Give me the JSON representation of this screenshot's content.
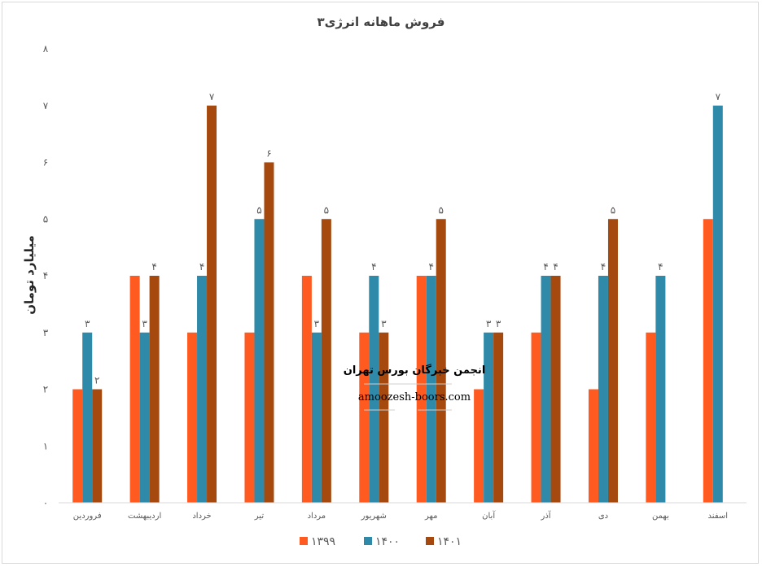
{
  "chart_data": {
    "type": "bar",
    "title": "فروش ماهانه انرژی۳",
    "ylabel": "میلیارد تومان",
    "xlabel": "",
    "ylim": [
      0,
      8
    ],
    "yticks": [
      "۰",
      "۱",
      "۲",
      "۳",
      "۴",
      "۵",
      "۶",
      "۷",
      "۸"
    ],
    "grid": false,
    "legend_position": "bottom",
    "categories": [
      "فروردین",
      "اردیبهشت",
      "خرداد",
      "تیر",
      "مرداد",
      "شهریور",
      "مهر",
      "آبان",
      "آذر",
      "دی",
      "بهمن",
      "اسفند"
    ],
    "series": [
      {
        "name": "۱۳۹۹",
        "color": "#ff5a1f",
        "values": [
          2,
          4,
          3,
          3,
          4,
          3,
          4,
          2,
          3,
          2,
          3,
          5
        ],
        "labels": [
          "",
          "",
          "",
          "",
          "",
          "",
          "",
          "",
          "",
          "",
          "",
          ""
        ]
      },
      {
        "name": "۱۴۰۰",
        "color": "#2e8aa8",
        "values": [
          3,
          3,
          4,
          5,
          3,
          4,
          4,
          3,
          4,
          4,
          4,
          7
        ],
        "labels": [
          "۳",
          "۳",
          "۴",
          "۵",
          "۳",
          "۴",
          "۴",
          "۳",
          "۴",
          "۴",
          "۴",
          "۷"
        ]
      },
      {
        "name": "۱۴۰۱",
        "color": "#a5490e",
        "values": [
          2,
          4,
          7,
          6,
          5,
          3,
          5,
          3,
          4,
          5,
          null,
          null
        ],
        "labels": [
          "۲",
          "۴",
          "۷",
          "۶",
          "۵",
          "۳",
          "۵",
          "۳",
          "۴",
          "۵",
          "",
          ""
        ]
      }
    ]
  },
  "watermark": {
    "name": "انجمن خبرگان بورس تهران",
    "url": "amoozesh-boors.com"
  }
}
